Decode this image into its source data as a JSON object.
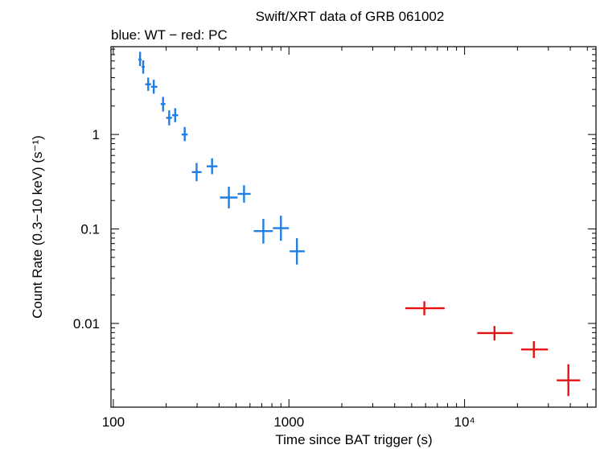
{
  "chart_data": {
    "type": "scatter",
    "title": "Swift/XRT data of GRB 061002",
    "subtitle": "blue: WT − red: PC",
    "xlabel": "Time since BAT trigger (s)",
    "ylabel": "Count Rate (0.3−10 keV) (s⁻¹)",
    "x_scale": "log",
    "y_scale": "log",
    "xlim": [
      97,
      56000
    ],
    "ylim": [
      0.0013,
      8.5
    ],
    "x_ticks": [
      {
        "value": 100,
        "label": "100"
      },
      {
        "value": 1000,
        "label": "1000"
      },
      {
        "value": 10000,
        "label": "10⁴"
      }
    ],
    "y_ticks": [
      {
        "value": 1,
        "label": "1"
      },
      {
        "value": 0.1,
        "label": "0.1"
      },
      {
        "value": 0.01,
        "label": "0.01"
      }
    ],
    "grid": false,
    "series": [
      {
        "name": "WT",
        "color": "#1f7fe6",
        "points": [
          {
            "x": 142,
            "xlo": 139,
            "xhi": 145,
            "y": 6.2,
            "ylo": 5.3,
            "yhi": 7.5
          },
          {
            "x": 148,
            "xlo": 145,
            "xhi": 151,
            "y": 5.2,
            "ylo": 4.4,
            "yhi": 6.1
          },
          {
            "x": 158,
            "xlo": 152,
            "xhi": 164,
            "y": 3.4,
            "ylo": 2.9,
            "yhi": 4.0
          },
          {
            "x": 170,
            "xlo": 164,
            "xhi": 178,
            "y": 3.2,
            "ylo": 2.7,
            "yhi": 3.8
          },
          {
            "x": 192,
            "xlo": 186,
            "xhi": 198,
            "y": 2.1,
            "ylo": 1.75,
            "yhi": 2.5
          },
          {
            "x": 208,
            "xlo": 200,
            "xhi": 216,
            "y": 1.5,
            "ylo": 1.25,
            "yhi": 1.8
          },
          {
            "x": 225,
            "xlo": 216,
            "xhi": 234,
            "y": 1.6,
            "ylo": 1.35,
            "yhi": 1.9
          },
          {
            "x": 255,
            "xlo": 245,
            "xhi": 265,
            "y": 1.0,
            "ylo": 0.85,
            "yhi": 1.2
          },
          {
            "x": 298,
            "xlo": 280,
            "xhi": 318,
            "y": 0.4,
            "ylo": 0.32,
            "yhi": 0.5
          },
          {
            "x": 365,
            "xlo": 340,
            "xhi": 392,
            "y": 0.46,
            "ylo": 0.38,
            "yhi": 0.56
          },
          {
            "x": 455,
            "xlo": 405,
            "xhi": 510,
            "y": 0.215,
            "ylo": 0.165,
            "yhi": 0.28
          },
          {
            "x": 555,
            "xlo": 510,
            "xhi": 605,
            "y": 0.235,
            "ylo": 0.19,
            "yhi": 0.29
          },
          {
            "x": 715,
            "xlo": 630,
            "xhi": 810,
            "y": 0.095,
            "ylo": 0.07,
            "yhi": 0.128
          },
          {
            "x": 900,
            "xlo": 810,
            "xhi": 1000,
            "y": 0.102,
            "ylo": 0.075,
            "yhi": 0.138
          },
          {
            "x": 1110,
            "xlo": 1010,
            "xhi": 1230,
            "y": 0.058,
            "ylo": 0.042,
            "yhi": 0.08
          }
        ]
      },
      {
        "name": "PC",
        "color": "#e81010",
        "points": [
          {
            "x": 5900,
            "xlo": 4600,
            "xhi": 7700,
            "y": 0.0145,
            "ylo": 0.0122,
            "yhi": 0.0172
          },
          {
            "x": 14800,
            "xlo": 11800,
            "xhi": 18800,
            "y": 0.0079,
            "ylo": 0.0066,
            "yhi": 0.0094
          },
          {
            "x": 24800,
            "xlo": 21000,
            "xhi": 29800,
            "y": 0.0053,
            "ylo": 0.0043,
            "yhi": 0.0065
          },
          {
            "x": 39000,
            "xlo": 33500,
            "xhi": 45500,
            "y": 0.0025,
            "ylo": 0.0017,
            "yhi": 0.0037
          }
        ]
      }
    ]
  }
}
